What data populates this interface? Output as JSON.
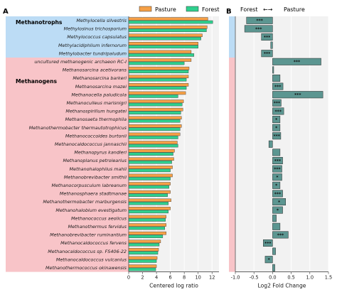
{
  "figure": {
    "panel_a_label": "A",
    "panel_b_label": "B",
    "group_labels": [
      "Methanotrophs",
      "Methanogens"
    ],
    "direction_left": "Forest",
    "direction_arrow": "←→",
    "direction_right": "Pasture"
  },
  "colors": {
    "pasture": "#f5a046",
    "forest": "#2fcf8e",
    "methanotroph_bg": "#bcdcf5",
    "methanogen_bg": "#f8c4c8",
    "fold_bar": "#5c9691",
    "plot_bg": "#f2f2f2",
    "grid": "#ffffff"
  },
  "chart_data": [
    {
      "type": "bar",
      "orientation": "horizontal",
      "xlabel": "Centered log ratio",
      "xlim": [
        0,
        13
      ],
      "xticks": [
        0,
        2,
        4,
        6,
        8,
        10,
        12
      ],
      "legend": "top",
      "grid": true,
      "categories": [
        "Methylocella silvestris",
        "Methylosinus trichosporium",
        "Methylococcus capsulatus",
        "Methylacidiphilum infernorum",
        "Methylobacter tundripaludum",
        "uncultured methanogenic archaeon RC-I",
        "Methanosarcina acetivorans",
        "Methanosarcina barkeri",
        "Methanosarcina mazei",
        "Methanocella paludicola",
        "Methanoculleus marisnigri",
        "Methanospirillum hungatei",
        "Methanosaeta thermophila",
        "Methanothermobacter thermautotrophicus",
        "Methanococcoides burtonii",
        "Methanocaldococcus jannaschii",
        "Methanopyrus kandleri",
        "Methanoplanus petrolearius",
        "Methanohalophilus mahii",
        "Methanobrevibacter smithii",
        "Methanocorpusculum labreanum",
        "Methanosphaera stadtmanae",
        "Methanothermobacter marburgensis",
        "Methanohalobium evestigatum",
        "Methanococcus aeolicus",
        "Methanothermus fervidus",
        "Methanobrevibacter ruminantium",
        "Methanocaldococcus fervens",
        "Methanocaldococcus sp. FS406-22",
        "Methanocaldococcus vulcanius",
        "Methanothermococcus okinawensis"
      ],
      "group_rows": [
        5,
        26
      ],
      "series": [
        {
          "name": "Pasture",
          "values": [
            11.4,
            11.3,
            10.6,
            10.0,
            9.0,
            9.0,
            8.7,
            8.6,
            8.6,
            8.2,
            7.9,
            7.8,
            7.6,
            7.6,
            7.4,
            7.0,
            6.6,
            6.5,
            6.3,
            6.3,
            6.0,
            6.0,
            6.1,
            6.0,
            5.4,
            5.4,
            5.4,
            4.6,
            4.3,
            4.1,
            4.0
          ]
        },
        {
          "name": "Forest",
          "values": [
            12.1,
            11.2,
            10.4,
            10.0,
            9.4,
            8.0,
            8.6,
            8.3,
            8.3,
            7.1,
            7.7,
            7.5,
            7.4,
            7.4,
            7.1,
            7.1,
            6.4,
            6.2,
            6.0,
            6.0,
            5.8,
            5.6,
            5.7,
            5.7,
            5.3,
            5.2,
            4.9,
            4.4,
            4.2,
            4.0,
            3.9
          ]
        }
      ]
    },
    {
      "type": "bar",
      "orientation": "horizontal",
      "xlabel": "Log2 Fold Change",
      "xlim": [
        -1.0,
        1.5
      ],
      "xticks": [
        "-1.0",
        "-0.5",
        "0.0",
        "0.5",
        "1.0",
        "1.5"
      ],
      "grid": true,
      "values": [
        -0.7,
        -0.75,
        -0.3,
        -0.05,
        -0.3,
        1.3,
        0.03,
        0.2,
        0.28,
        1.35,
        0.23,
        0.3,
        0.2,
        0.2,
        0.22,
        -0.1,
        0.2,
        0.27,
        0.25,
        0.25,
        0.2,
        0.27,
        0.35,
        0.27,
        0.1,
        0.2,
        0.42,
        -0.25,
        0.08,
        -0.2,
        0.06
      ],
      "significance": [
        "***",
        "***",
        "***",
        "",
        "***",
        "***",
        "",
        "",
        "***",
        "***",
        "***",
        "***",
        "*",
        "*",
        "***",
        "",
        "",
        "***",
        "***",
        "*",
        "*",
        "***",
        "*",
        "*",
        "",
        "",
        "***",
        "***",
        "",
        "*",
        ""
      ]
    }
  ]
}
